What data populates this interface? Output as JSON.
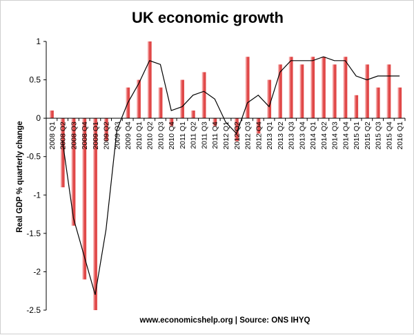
{
  "chart_data": {
    "type": "bar",
    "title": "UK economic growth",
    "ylabel": "Real GDP % quarterly change",
    "source_note": "www.economicshelp.org | Source: ONS  IHYQ",
    "ylim": [
      -2.5,
      1
    ],
    "yticks": [
      "1",
      "0.5",
      "0",
      "-0.5",
      "-1",
      "-1.5",
      "-2",
      "-2.5"
    ],
    "ytick_values": [
      1,
      0.5,
      0,
      -0.5,
      -1,
      -1.5,
      -2,
      -2.5
    ],
    "grid": false,
    "categories": [
      "2008 Q1",
      "2008 Q2",
      "2008 Q3",
      "2008 Q4",
      "2009 Q1",
      "2009 Q2",
      "2009 Q3",
      "2009 Q4",
      "2010 Q1",
      "2010 Q2",
      "2010 Q3",
      "2010 Q4",
      "2011 Q1",
      "2011 Q2",
      "2011 Q3",
      "2011 Q4",
      "2012 Q1",
      "2012 Q2",
      "2012 Q3",
      "2012 Q4",
      "2013 Q1",
      "2013 Q2",
      "2013 Q3",
      "2013 Q4",
      "2014 Q1",
      "2014 Q2",
      "2014 Q3",
      "2014 Q4",
      "2015 Q1",
      "2015 Q2",
      "2015 Q3",
      "2015 Q4",
      "2016 Q1"
    ],
    "series": [
      {
        "type": "bar",
        "values": [
          0.1,
          -0.9,
          -1.4,
          -2.1,
          -2.5,
          -0.3,
          0.0,
          0.4,
          0.5,
          1.0,
          0.4,
          -0.1,
          0.5,
          0.1,
          0.6,
          -0.1,
          0.0,
          -0.3,
          0.8,
          -0.2,
          0.5,
          0.7,
          0.8,
          0.7,
          0.8,
          0.8,
          0.7,
          0.8,
          0.3,
          0.7,
          0.4,
          0.7,
          0.4
        ]
      },
      {
        "type": "line",
        "values": [
          null,
          -0.3,
          -1.3,
          -1.8,
          -2.3,
          -1.45,
          -0.15,
          0.2,
          0.45,
          0.75,
          0.7,
          0.1,
          0.15,
          0.3,
          0.35,
          0.25,
          -0.05,
          -0.2,
          0.2,
          0.3,
          0.15,
          0.6,
          0.75,
          0.75,
          0.75,
          0.8,
          0.75,
          0.75,
          0.55,
          0.5,
          0.55,
          0.55,
          0.55
        ]
      }
    ],
    "colors": {
      "bar_light": "#ffd9d9",
      "bar_dark": "#e04848",
      "line": "#000000",
      "axis": "#000000"
    }
  }
}
